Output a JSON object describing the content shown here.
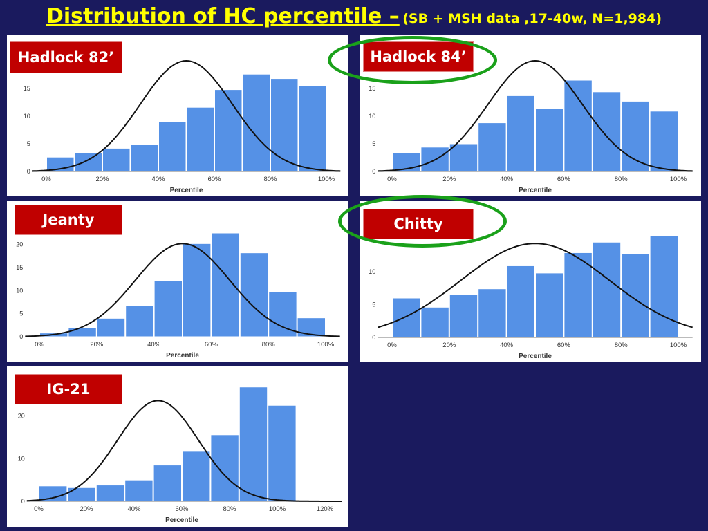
{
  "title": {
    "main": "Distribution of HC percentile –",
    "sub": "(SB + MSH data ,17-40w, N=1,984)"
  },
  "colors": {
    "background": "#1a1a5e",
    "title": "#ffff00",
    "bar": "#5591e6",
    "label_bg": "#c00000",
    "ring": "#1aa11a"
  },
  "chart_data": [
    {
      "type": "bar",
      "label": "Hadlock 82’",
      "xlabel": "Percentile",
      "xticks": [
        0,
        20,
        40,
        60,
        80,
        100
      ],
      "yticks": [
        0,
        5,
        10,
        15
      ],
      "xlim": [
        -5,
        105
      ],
      "ylim": [
        0,
        20
      ],
      "bar_width": 10,
      "bars": [
        {
          "x": 0,
          "y": 2.6
        },
        {
          "x": 10,
          "y": 3.4
        },
        {
          "x": 20,
          "y": 4.2
        },
        {
          "x": 30,
          "y": 4.9
        },
        {
          "x": 40,
          "y": 9.0
        },
        {
          "x": 50,
          "y": 11.6
        },
        {
          "x": 60,
          "y": 14.8
        },
        {
          "x": 70,
          "y": 17.6
        },
        {
          "x": 80,
          "y": 16.8
        },
        {
          "x": 90,
          "y": 15.5
        }
      ],
      "curve_peak": 20,
      "curve_mean": 50,
      "curve_sd": 16.5
    },
    {
      "type": "bar",
      "label": "Hadlock 84’",
      "xlabel": "Percentile",
      "xticks": [
        0,
        20,
        40,
        60,
        80,
        100
      ],
      "yticks": [
        0,
        5,
        10,
        15
      ],
      "xlim": [
        -5,
        105
      ],
      "ylim": [
        0,
        20
      ],
      "bar_width": 10,
      "bars": [
        {
          "x": 0,
          "y": 3.4
        },
        {
          "x": 10,
          "y": 4.4
        },
        {
          "x": 20,
          "y": 5.0
        },
        {
          "x": 30,
          "y": 8.8
        },
        {
          "x": 40,
          "y": 13.7
        },
        {
          "x": 50,
          "y": 11.4
        },
        {
          "x": 60,
          "y": 16.5
        },
        {
          "x": 70,
          "y": 14.4
        },
        {
          "x": 80,
          "y": 12.7
        },
        {
          "x": 90,
          "y": 10.9
        }
      ],
      "curve_peak": 20,
      "curve_mean": 50,
      "curve_sd": 16.5
    },
    {
      "type": "bar",
      "label": "Jeanty",
      "xlabel": "Percentile",
      "xticks": [
        0,
        20,
        40,
        60,
        80,
        100
      ],
      "yticks": [
        0,
        5,
        10,
        15,
        20
      ],
      "xlim": [
        -5,
        105
      ],
      "ylim": [
        0,
        22.5
      ],
      "bar_width": 10,
      "bars": [
        {
          "x": 0,
          "y": 0.8
        },
        {
          "x": 10,
          "y": 2.0
        },
        {
          "x": 20,
          "y": 4.0
        },
        {
          "x": 30,
          "y": 6.7
        },
        {
          "x": 40,
          "y": 12.1
        },
        {
          "x": 50,
          "y": 20.2
        },
        {
          "x": 60,
          "y": 22.5
        },
        {
          "x": 70,
          "y": 18.2
        },
        {
          "x": 80,
          "y": 9.7
        },
        {
          "x": 90,
          "y": 4.1
        }
      ],
      "curve_peak": 20.2,
      "curve_mean": 50,
      "curve_sd": 16.5
    },
    {
      "type": "bar",
      "label": "Chitty",
      "xlabel": "Percentile",
      "xticks": [
        0,
        20,
        40,
        60,
        80,
        100
      ],
      "yticks": [
        0,
        5,
        10
      ],
      "xlim": [
        -5,
        105
      ],
      "ylim": [
        0,
        20
      ],
      "bar_width": 10,
      "bars": [
        {
          "x": 0,
          "y": 6.0
        },
        {
          "x": 10,
          "y": 4.6
        },
        {
          "x": 20,
          "y": 6.5
        },
        {
          "x": 30,
          "y": 7.4
        },
        {
          "x": 40,
          "y": 10.9
        },
        {
          "x": 50,
          "y": 9.8
        },
        {
          "x": 60,
          "y": 12.9
        },
        {
          "x": 70,
          "y": 14.5
        },
        {
          "x": 80,
          "y": 12.7
        },
        {
          "x": 90,
          "y": 15.5
        }
      ],
      "curve_peak": 14.3,
      "curve_mean": 50,
      "curve_sd": 26
    },
    {
      "type": "bar",
      "label": "IG-21",
      "xlabel": "Percentile",
      "xticks": [
        0,
        20,
        40,
        60,
        80,
        100,
        120
      ],
      "yticks": [
        0,
        10,
        20
      ],
      "xlim": [
        -5,
        127
      ],
      "ylim": [
        0,
        30
      ],
      "bar_width": 12,
      "bars": [
        {
          "x": 0,
          "y": 3.6
        },
        {
          "x": 12,
          "y": 3.2
        },
        {
          "x": 24,
          "y": 3.8
        },
        {
          "x": 36,
          "y": 5.0
        },
        {
          "x": 48,
          "y": 8.5
        },
        {
          "x": 60,
          "y": 11.7
        },
        {
          "x": 72,
          "y": 15.6
        },
        {
          "x": 84,
          "y": 26.8
        },
        {
          "x": 96,
          "y": 22.5
        }
      ],
      "curve_peak": 23.6,
      "curve_mean": 50,
      "curve_sd": 17
    }
  ]
}
